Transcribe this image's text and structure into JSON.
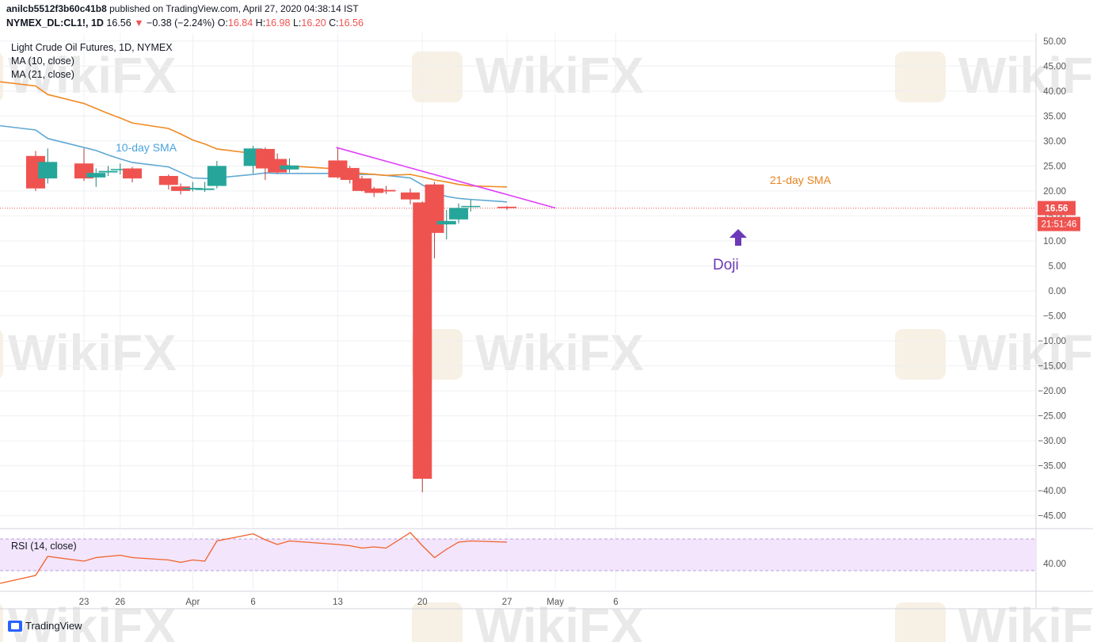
{
  "header": {
    "user": "anilcb5512f3b60c41b8",
    "published": "published on TradingView.com, April 27, 2020 04:38:14 IST",
    "symbol": "NYMEX_DL:CL1!, 1D",
    "last": "16.56",
    "change_arrow": "▼",
    "change": "−0.38 (−2.24%)",
    "o_label": "O:",
    "o": "16.84",
    "h_label": "H:",
    "h": "16.98",
    "l_label": "L:",
    "l": "16.20",
    "c_label": "C:",
    "c": "16.56"
  },
  "legend": {
    "title": "Light Crude Oil Futures, 1D, NYMEX",
    "ma10": "MA (10, close)",
    "ma21": "MA (21, close)",
    "rsi": "RSI (14, close)"
  },
  "annotations": {
    "sma10": "10-day SMA",
    "sma21": "21-day SMA",
    "doji": "Doji"
  },
  "price_tag": {
    "price": "16.56",
    "countdown": "21:51:46"
  },
  "watermark": "WikiFX",
  "footer": {
    "brand": "TradingView"
  },
  "colors": {
    "up": "#26a69a",
    "down": "#ef5350",
    "sma10": "#5fa8d3",
    "sma21": "#f08a24",
    "trendline": "#e040fb",
    "doji_arrow": "#6c3ab8",
    "rsi": "#f0622b",
    "rsi_band": "#f3e5fc"
  },
  "chart_data": [
    {
      "type": "candlestick",
      "title": "Light Crude Oil Futures, 1D, NYMEX",
      "x_tick_labels": [
        "23",
        "26",
        "Apr",
        "6",
        "13",
        "20",
        "27",
        "May",
        "6"
      ],
      "y_tick_labels": [
        "50.00",
        "45.00",
        "40.00",
        "35.00",
        "30.00",
        "25.00",
        "20.00",
        "15.00",
        "10.00",
        "5.00",
        "0.00",
        "−5.00",
        "−10.00",
        "−15.00",
        "−20.00",
        "−25.00",
        "−30.00",
        "−35.00",
        "−40.00",
        "−45.00"
      ],
      "ylim": [
        -48,
        52
      ],
      "grid": true,
      "candles": [
        {
          "date": "2020-03-19",
          "o": 27.0,
          "h": 28.0,
          "l": 20.0,
          "c": 20.5
        },
        {
          "date": "2020-03-20",
          "o": 22.5,
          "h": 28.5,
          "l": 21.5,
          "c": 25.8
        },
        {
          "date": "2020-03-23",
          "o": 25.5,
          "h": 28.5,
          "l": 22.0,
          "c": 22.5
        },
        {
          "date": "2020-03-24",
          "o": 22.7,
          "h": 24.5,
          "l": 20.8,
          "c": 23.6
        },
        {
          "date": "2020-03-25",
          "o": 23.7,
          "h": 25.0,
          "l": 23.0,
          "c": 24.0
        },
        {
          "date": "2020-03-26",
          "o": 24.3,
          "h": 25.5,
          "l": 23.3,
          "c": 24.4
        },
        {
          "date": "2020-03-27",
          "o": 24.5,
          "h": 24.8,
          "l": 21.7,
          "c": 22.5
        },
        {
          "date": "2020-03-30",
          "o": 23.0,
          "h": 23.3,
          "l": 20.3,
          "c": 21.2
        },
        {
          "date": "2020-03-31",
          "o": 20.9,
          "h": 21.5,
          "l": 19.3,
          "c": 20.0
        },
        {
          "date": "2020-04-01",
          "o": 20.3,
          "h": 21.8,
          "l": 19.9,
          "c": 20.6
        },
        {
          "date": "2020-04-02",
          "o": 20.2,
          "h": 21.8,
          "l": 19.8,
          "c": 20.5
        },
        {
          "date": "2020-04-03",
          "o": 21.0,
          "h": 26.0,
          "l": 20.5,
          "c": 25.0
        },
        {
          "date": "2020-04-06",
          "o": 25.0,
          "h": 29.0,
          "l": 23.5,
          "c": 28.5
        },
        {
          "date": "2020-04-07",
          "o": 28.4,
          "h": 28.7,
          "l": 22.2,
          "c": 24.5
        },
        {
          "date": "2020-04-08",
          "o": 26.4,
          "h": 27.5,
          "l": 23.5,
          "c": 23.7
        },
        {
          "date": "2020-04-09",
          "o": 24.3,
          "h": 26.5,
          "l": 23.7,
          "c": 25.1
        },
        {
          "date": "2020-04-13",
          "o": 26.1,
          "h": 28.5,
          "l": 22.5,
          "c": 22.7
        },
        {
          "date": "2020-04-14",
          "o": 24.6,
          "h": 25.0,
          "l": 21.5,
          "c": 22.2
        },
        {
          "date": "2020-04-15",
          "o": 22.5,
          "h": 23.0,
          "l": 19.9,
          "c": 20.0
        },
        {
          "date": "2020-04-16",
          "o": 20.5,
          "h": 20.8,
          "l": 18.8,
          "c": 19.6
        },
        {
          "date": "2020-04-17",
          "o": 20.2,
          "h": 21.0,
          "l": 19.4,
          "c": 19.9
        },
        {
          "date": "2020-04-19",
          "o": 19.7,
          "h": 20.5,
          "l": 17.3,
          "c": 18.3
        },
        {
          "date": "2020-04-20",
          "o": 17.7,
          "h": 17.9,
          "l": -40.3,
          "c": -37.6
        },
        {
          "date": "2020-04-21",
          "o": 21.3,
          "h": 21.8,
          "l": 6.5,
          "c": 11.6
        },
        {
          "date": "2020-04-22",
          "o": 13.3,
          "h": 16.2,
          "l": 10.3,
          "c": 14.0
        },
        {
          "date": "2020-04-23",
          "o": 14.3,
          "h": 17.5,
          "l": 13.5,
          "c": 16.6
        },
        {
          "date": "2020-04-24",
          "o": 16.9,
          "h": 18.2,
          "l": 15.9,
          "c": 17.0
        },
        {
          "date": "2020-04-27",
          "o": 16.84,
          "h": 16.98,
          "l": 16.2,
          "c": 16.56
        }
      ],
      "series": [
        {
          "name": "MA (10, close)",
          "values": [
            32.2,
            30.5,
            28.7,
            28.1,
            27.2,
            26.4,
            25.7,
            24.8,
            23.7,
            22.6,
            22.5,
            22.6,
            23.3,
            23.6,
            23.5,
            23.5,
            23.5,
            23.3,
            23.3,
            23.3,
            23.1,
            22.6,
            21.2,
            19.8,
            18.9,
            18.5,
            18.3,
            17.8
          ]
        },
        {
          "name": "MA (21, close)",
          "values": [
            41.0,
            39.3,
            37.5,
            36.5,
            35.5,
            34.6,
            33.6,
            32.5,
            31.4,
            30.2,
            29.4,
            28.4,
            27.5,
            26.5,
            25.8,
            25.0,
            24.4,
            23.8,
            23.5,
            23.3,
            23.1,
            23.3,
            22.8,
            22.2,
            21.8,
            21.3,
            21.0,
            20.8
          ]
        },
        {
          "name": "RSI (14, close)",
          "values": [
            39.0,
            40.6,
            40.2,
            40.5,
            40.6,
            40.7,
            40.5,
            40.3,
            40.1,
            40.3,
            40.2,
            41.9,
            42.5,
            42.0,
            41.6,
            41.9,
            41.6,
            41.5,
            41.3,
            41.4,
            41.3,
            42.6,
            41.5,
            40.5,
            41.2,
            41.8,
            41.9,
            41.8
          ]
        }
      ],
      "trendline": {
        "from": {
          "date": "2020-04-13",
          "value": 28.7
        },
        "to": {
          "date": "2020-05-01",
          "value": 16.6
        }
      },
      "rsi_visible_level": "40.00",
      "last_price": 16.56
    }
  ]
}
